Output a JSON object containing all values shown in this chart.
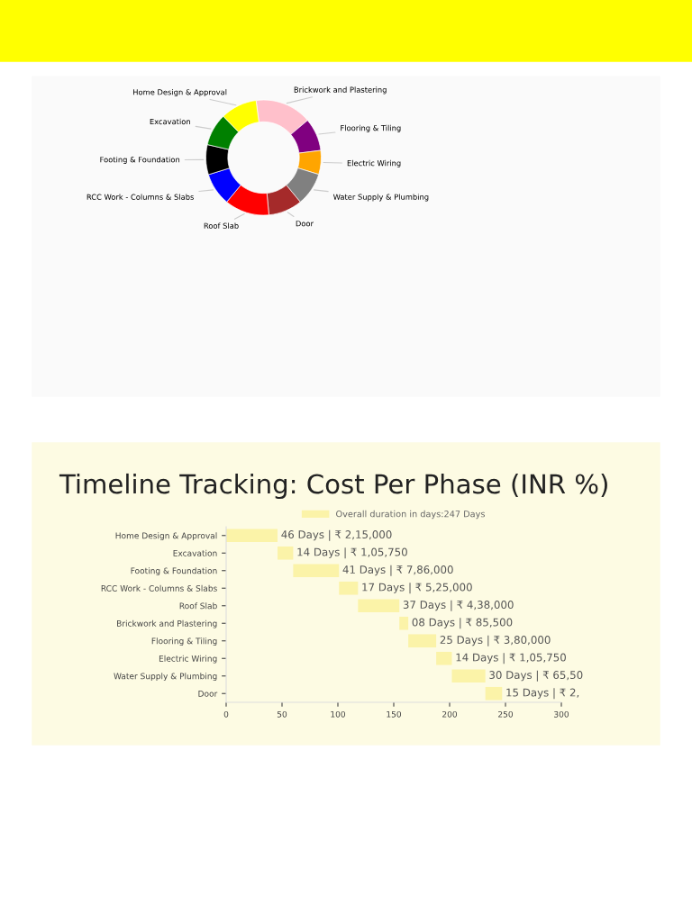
{
  "chart_data": [
    {
      "type": "donut",
      "categories": [
        "Brickwork and Plastering",
        "Flooring & Tiling",
        "Electric Wiring",
        "Water Supply & Plumbing",
        "Door",
        "Roof Slab",
        "RCC Work - Columns & Slabs",
        "Footing & Foundation",
        "Excavation",
        "Home Design & Approval"
      ],
      "values": [
        15.9,
        9.2,
        6.7,
        9.3,
        9.5,
        12.5,
        9.2,
        8.4,
        9.1,
        10.2
      ],
      "colors": [
        "#ffc0cb",
        "#800080",
        "#ffa500",
        "#808080",
        "#a52a2a",
        "#ff0000",
        "#0000ff",
        "#000000",
        "#008000",
        "#ffff00"
      ]
    },
    {
      "type": "bar",
      "orientation": "horizontal",
      "title": "Timeline Tracking: Cost Per Phase (INR %)",
      "categories": [
        "Home Design & Approval",
        "Excavation",
        "Footing & Foundation",
        "RCC Work - Columns & Slabs",
        "Roof Slab",
        "Brickwork and Plastering",
        "Flooring & Tiling",
        "Electric Wiring",
        "Water Supply & Plumbing",
        "Door"
      ],
      "series": [
        {
          "name": "Overall duration in days:247 Days",
          "color": "#fbf3a8",
          "values": [
            46,
            14,
            41,
            17,
            37,
            8,
            25,
            14,
            30,
            15
          ],
          "base": [
            0,
            46,
            60,
            101,
            118,
            155,
            163,
            188,
            202,
            232
          ]
        }
      ],
      "value_labels": [
        "46 Days | ₹ 2,15,000",
        "14 Days | ₹ 1,05,750",
        "41 Days | ₹ 7,86,000",
        "17 Days | ₹ 5,25,000",
        "37 Days | ₹ 4,38,000",
        "08 Days | ₹ 85,500",
        "25 Days | ₹ 3,80,000",
        "14 Days | ₹ 1,05,750",
        "30 Days | ₹ 65,50",
        "15 Days | ₹ 2,"
      ],
      "xlim": [
        0,
        300
      ],
      "xticks": [
        0,
        50,
        100,
        150,
        200,
        250,
        300
      ],
      "legend": "top"
    }
  ]
}
